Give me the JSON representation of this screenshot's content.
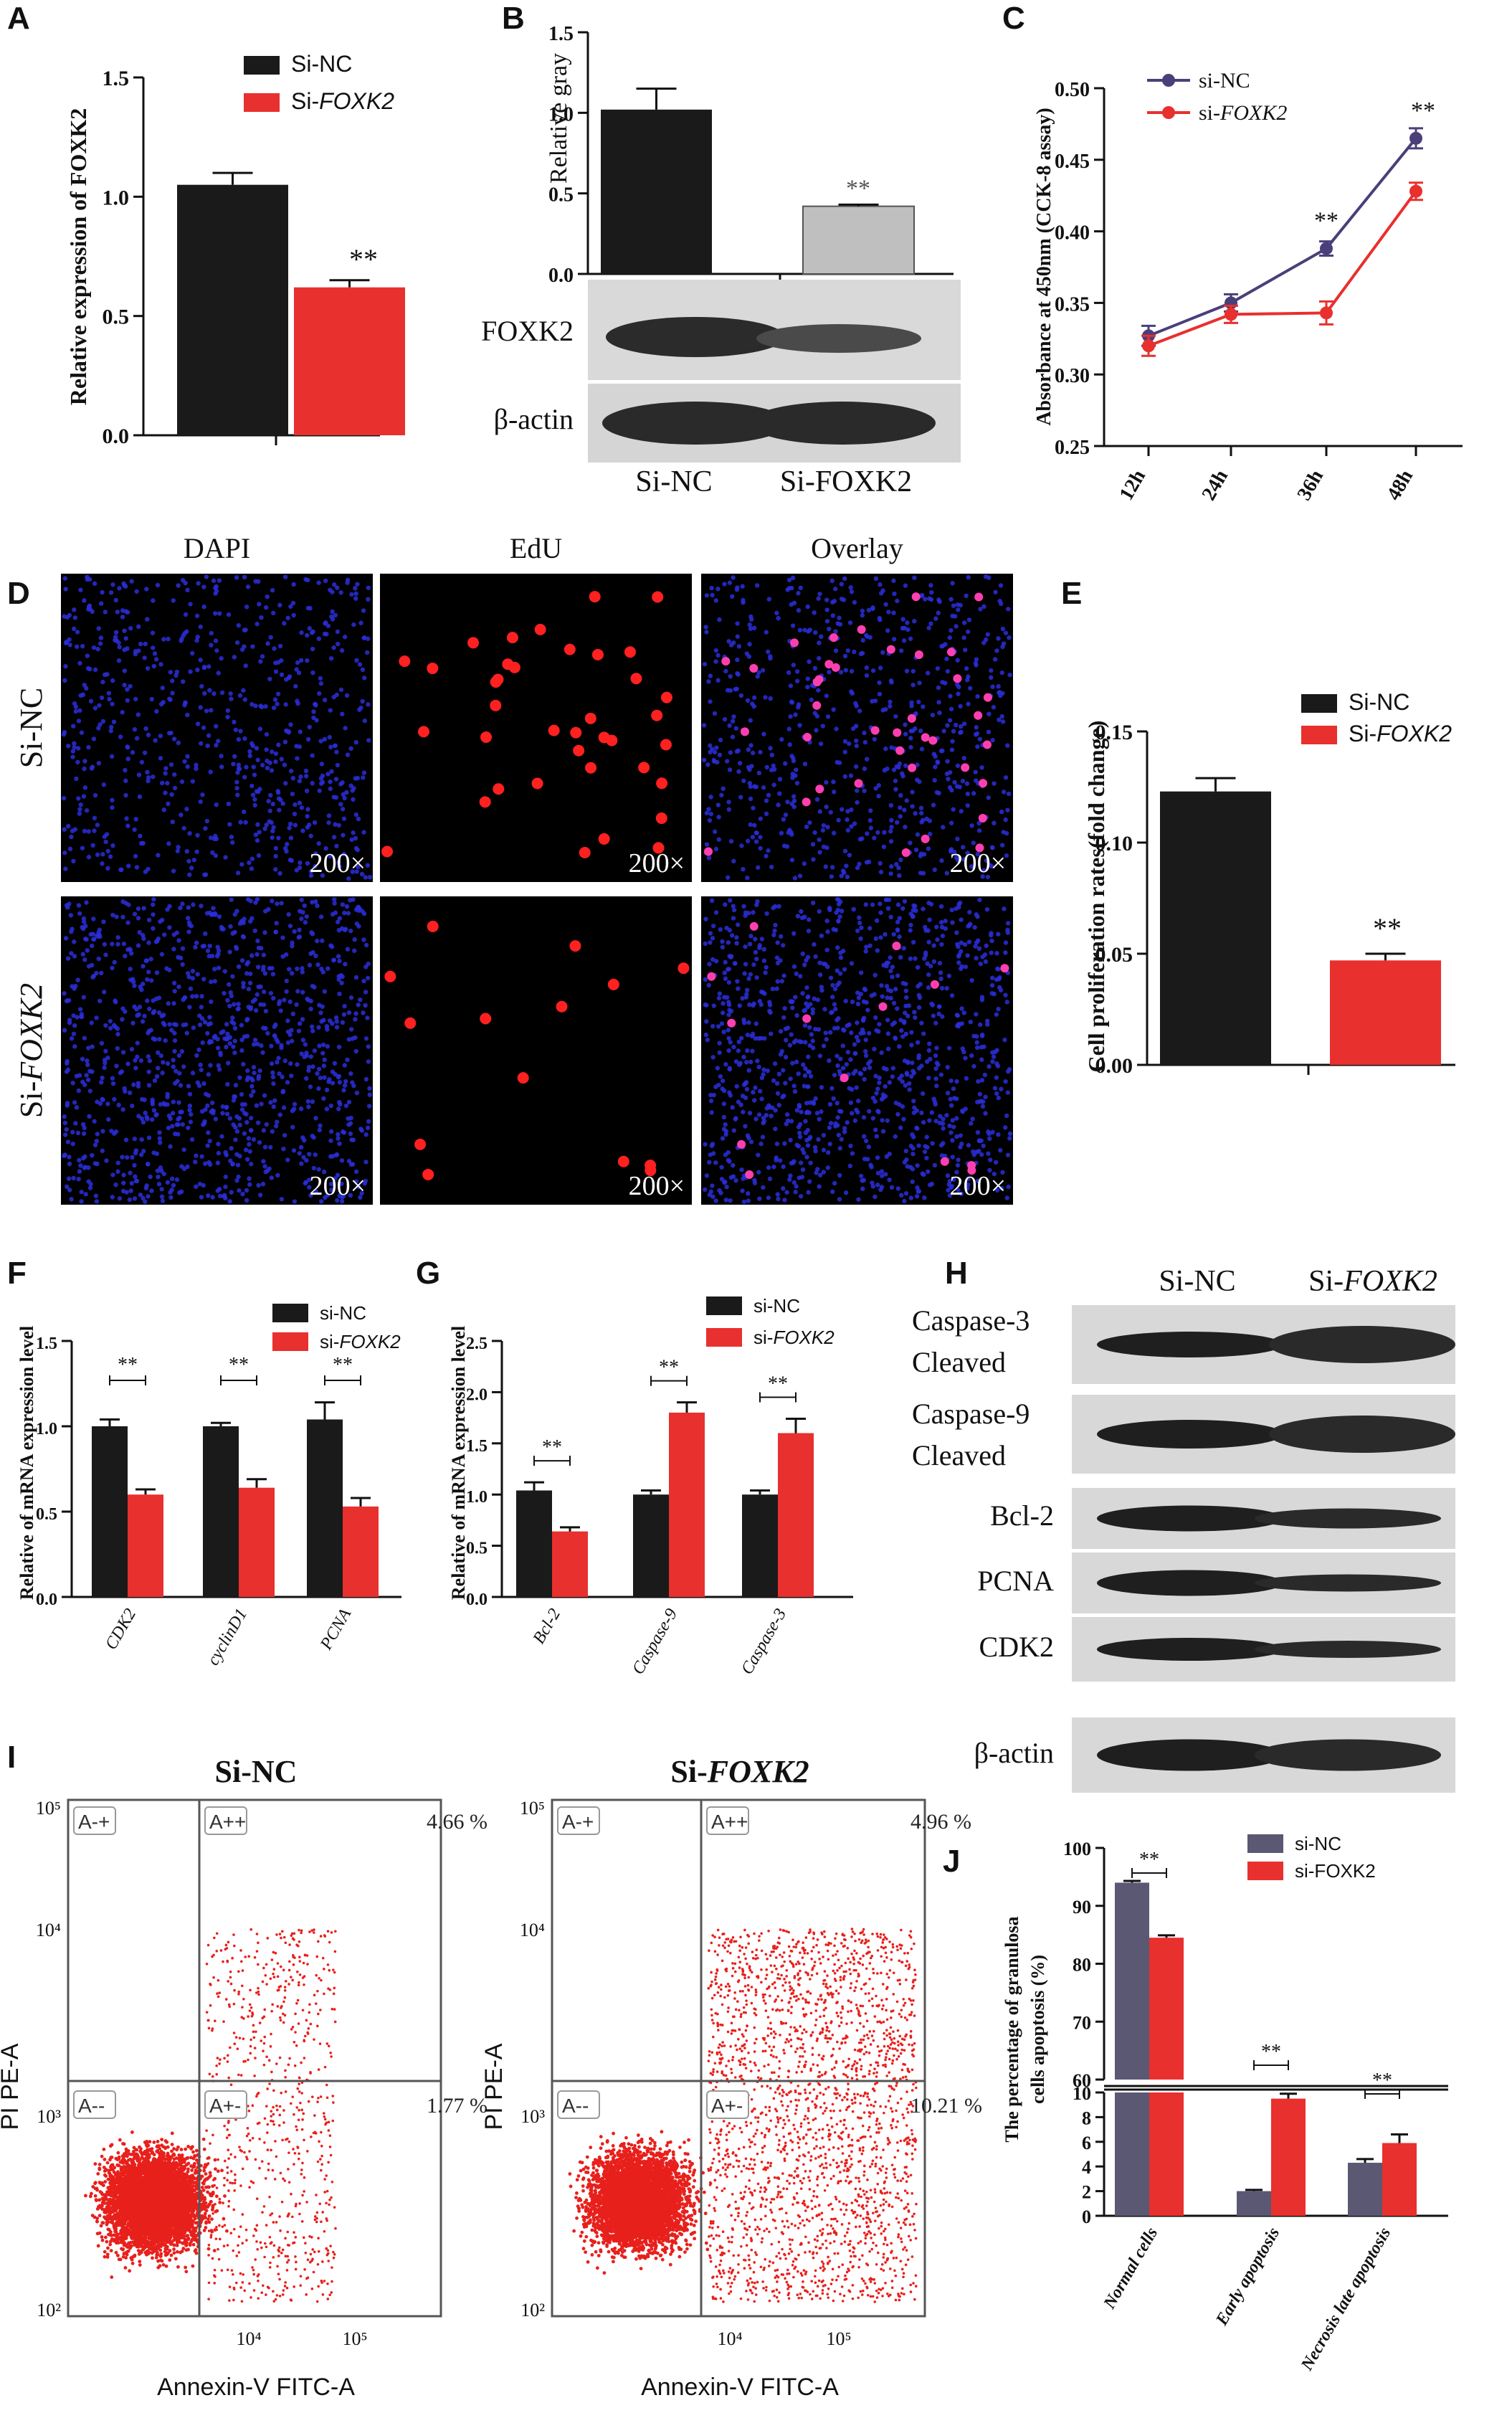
{
  "colors": {
    "black_bar": "#1a1a1a",
    "red": "#e8302e",
    "gray_bar": "#bfbfbf",
    "navy": "#5a5873",
    "navy_line": "#4b3f7a",
    "blue_dot": "#2a2ed8",
    "edu_red": "#ff2020",
    "flow_red": "#e8201c"
  },
  "panel_letters": [
    "A",
    "B",
    "C",
    "D",
    "E",
    "F",
    "G",
    "H",
    "I",
    "J"
  ],
  "chart_data": [
    {
      "panel": "A",
      "type": "bar",
      "categories": [
        "Si-NC",
        "Si-FOXK2"
      ],
      "values": [
        1.05,
        0.62
      ],
      "errors": [
        0.05,
        0.03
      ],
      "ylabel": "Relative expression of FOXK2",
      "ylim": [
        0,
        1.5
      ],
      "yticks": [
        "0.0",
        "0.5",
        "1.0",
        "1.5"
      ],
      "legend": [
        "Si-NC",
        "Si-FOXK2"
      ],
      "legend_position": "top-right",
      "annotations": [
        "**"
      ]
    },
    {
      "panel": "B",
      "type": "bar",
      "categories": [
        "Si-NC",
        "Si-FOXK2"
      ],
      "values": [
        1.02,
        0.42
      ],
      "errors": [
        0.13,
        0.01
      ],
      "ylabel": "Relative gray",
      "ylim": [
        0,
        1.5
      ],
      "yticks": [
        "0.0",
        "0.5",
        "1.0",
        "1.5"
      ],
      "annotations": [
        "**"
      ],
      "blot_labels": [
        "FOXK2",
        "β-actin"
      ],
      "lane_labels": [
        "Si-NC",
        "Si-FOXK2"
      ]
    },
    {
      "panel": "C",
      "type": "line",
      "x": [
        "12h",
        "24h",
        "36h",
        "48h"
      ],
      "series": [
        {
          "name": "si-NC",
          "values": [
            0.327,
            0.35,
            0.388,
            0.465
          ],
          "errors": [
            0.007,
            0.006,
            0.005,
            0.007
          ]
        },
        {
          "name": "si-FOXK2",
          "values": [
            0.32,
            0.342,
            0.343,
            0.428
          ],
          "errors": [
            0.007,
            0.006,
            0.008,
            0.006
          ]
        }
      ],
      "ylabel": "Absorbance at 450nm (CCK-8 assay)",
      "ylim": [
        0.25,
        0.5
      ],
      "yticks": [
        "0.25",
        "0.30",
        "0.35",
        "0.40",
        "0.45",
        "0.50"
      ],
      "annotations": [
        "**",
        "**"
      ]
    },
    {
      "panel": "E",
      "type": "bar",
      "categories": [
        "Si-NC",
        "Si-FOXK2"
      ],
      "values": [
        0.123,
        0.047
      ],
      "errors": [
        0.006,
        0.003
      ],
      "ylabel": "Cell proliferation rates(fold change)",
      "ylim": [
        0,
        0.15
      ],
      "yticks": [
        "0.00",
        "0.05",
        "0.10",
        "0.15"
      ],
      "legend": [
        "Si-NC",
        "Si-FOXK2"
      ],
      "legend_position": "top-right",
      "annotations": [
        "**"
      ]
    },
    {
      "panel": "F",
      "type": "bar",
      "categories": [
        "CDK2",
        "cyclinD1",
        "PCNA"
      ],
      "series": [
        {
          "name": "si-NC",
          "values": [
            1.0,
            1.0,
            1.04
          ],
          "errors": [
            0.04,
            0.02,
            0.1
          ]
        },
        {
          "name": "si-FOXK2",
          "values": [
            0.6,
            0.64,
            0.53
          ],
          "errors": [
            0.03,
            0.05,
            0.05
          ]
        }
      ],
      "ylabel": "Relative of mRNA expression level",
      "ylim": [
        0,
        1.5
      ],
      "yticks": [
        "0.0",
        "0.5",
        "1.0",
        "1.5"
      ],
      "legend_position": "top-right",
      "annotations": [
        "**",
        "**",
        "**"
      ]
    },
    {
      "panel": "G",
      "type": "bar",
      "categories": [
        "Bcl-2",
        "Caspase-9",
        "Caspase-3"
      ],
      "series": [
        {
          "name": "si-NC",
          "values": [
            1.04,
            1.0,
            1.0
          ],
          "errors": [
            0.08,
            0.04,
            0.04
          ]
        },
        {
          "name": "si-FOXK2",
          "values": [
            0.64,
            1.8,
            1.6
          ],
          "errors": [
            0.04,
            0.1,
            0.14
          ]
        }
      ],
      "ylabel": "Relative of mRNA expression level",
      "ylim": [
        0,
        2.5
      ],
      "yticks": [
        "0.0",
        "0.5",
        "1.0",
        "1.5",
        "2.0",
        "2.5"
      ],
      "legend_position": "top-right",
      "annotations": [
        "**",
        "**",
        "**"
      ]
    },
    {
      "panel": "J",
      "type": "bar",
      "categories": [
        "Normal cells",
        "Early apoptosis",
        "Necrosis late apoptosis"
      ],
      "series": [
        {
          "name": "si-NC",
          "values": [
            94,
            2.0,
            4.3
          ],
          "errors": [
            0.3,
            0.1,
            0.3
          ]
        },
        {
          "name": "si-FOXK2",
          "values": [
            84.5,
            9.5,
            5.9
          ],
          "errors": [
            0.4,
            0.4,
            0.7
          ]
        }
      ],
      "ylabel": "The percentage of granulosa cells apoptosis (%)",
      "axis_break": true,
      "upper_yticks": [
        "60",
        "70",
        "80",
        "90",
        "100"
      ],
      "lower_yticks": [
        "0",
        "2",
        "4",
        "6",
        "8",
        "10"
      ],
      "legend_position": "top-right",
      "annotations": [
        "**",
        "**",
        "**"
      ]
    }
  ],
  "panel_h": {
    "lane_labels": [
      "Si-NC",
      "Si-FOXK2"
    ],
    "blots": [
      "Caspase-3\nCleaved",
      "Caspase-9\nCleaved",
      "Bcl-2",
      "PCNA",
      "CDK2",
      "β-actin"
    ]
  },
  "panel_d": {
    "columns": [
      "DAPI",
      "EdU",
      "Overlay"
    ],
    "rows": [
      "Si-NC",
      "Si-FOXK2"
    ],
    "magnification": "200×"
  },
  "panel_i": {
    "plots": [
      {
        "title": "Si-NC",
        "upper_right_pct": "4.66 %",
        "lower_right_pct": "1.77 %"
      },
      {
        "title": "Si-FOXK2",
        "upper_right_pct": "4.96 %",
        "lower_right_pct": "10.21 %"
      }
    ],
    "quadrants": [
      "A-+",
      "A++",
      "A--",
      "A+-"
    ],
    "xlabel": "Annexin-V FITC-A",
    "ylabel": "PI PE-A",
    "yticks": [
      "10⁵",
      "10⁴",
      "10³",
      "10²"
    ],
    "xticks": [
      "10⁴",
      "10⁵"
    ]
  }
}
